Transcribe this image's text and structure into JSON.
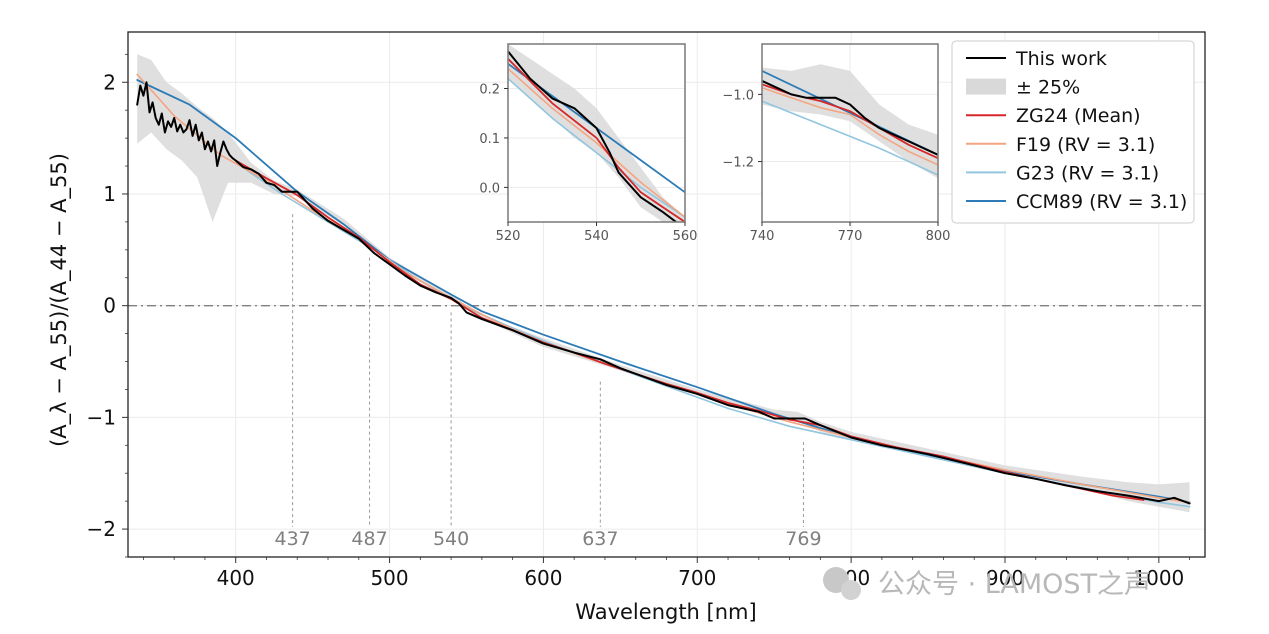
{
  "chart_data": [
    {
      "type": "line",
      "panel": "main",
      "xlabel": "Wavelength [nm]",
      "ylabel": "(A_λ − A_55)/(A_44 − A_55)",
      "xlim": [
        330,
        1030
      ],
      "ylim": [
        -2.25,
        2.45
      ],
      "xticks": [
        400,
        500,
        600,
        700,
        800,
        900,
        1000
      ],
      "yticks": [
        2,
        1,
        0,
        -1,
        -2
      ],
      "ytick_labels": [
        "2",
        "1",
        "0",
        "−1",
        "−2"
      ],
      "grid": true,
      "legend_position": "top-right",
      "reference_line": {
        "y": 0,
        "style": "dash-dot",
        "color": "#808080"
      },
      "annotations": [
        {
          "x": 437,
          "label": "437",
          "y_top": 0.82
        },
        {
          "x": 487,
          "label": "487",
          "y_top": 0.43
        },
        {
          "x": 540,
          "label": "540",
          "y_top": -0.06
        },
        {
          "x": 637,
          "label": "637",
          "y_top": -0.68
        },
        {
          "x": 769,
          "label": "769",
          "y_top": -1.22
        }
      ],
      "band": {
        "name": "± 25%",
        "color": "#d9d9d9",
        "x": [
          336,
          345,
          355,
          365,
          375,
          385,
          395,
          410,
          425,
          440,
          470,
          500,
          540,
          560,
          600,
          650,
          700,
          750,
          765,
          780,
          800,
          850,
          900,
          950,
          980,
          1000,
          1020
        ],
        "upper": [
          2.25,
          2.2,
          2.0,
          1.9,
          1.78,
          1.68,
          1.55,
          1.28,
          1.12,
          1.04,
          0.78,
          0.43,
          0.1,
          -0.09,
          -0.29,
          -0.53,
          -0.75,
          -0.93,
          -0.95,
          -1.04,
          -1.13,
          -1.28,
          -1.43,
          -1.53,
          -1.58,
          -1.6,
          -1.58
        ],
        "lower": [
          1.45,
          1.55,
          1.4,
          1.3,
          1.15,
          0.75,
          1.1,
          1.1,
          1.0,
          0.98,
          0.72,
          0.38,
          0.06,
          -0.12,
          -0.37,
          -0.58,
          -0.8,
          -0.98,
          -1.02,
          -1.13,
          -1.2,
          -1.32,
          -1.5,
          -1.63,
          -1.75,
          -1.8,
          -1.85
        ]
      },
      "series": [
        {
          "name": "This work",
          "color": "#000000",
          "width": 2.0,
          "x": [
            336,
            338,
            340,
            342,
            344,
            346,
            348,
            350,
            352,
            354,
            356,
            358,
            360,
            362,
            364,
            366,
            368,
            370,
            372,
            374,
            376,
            378,
            380,
            382,
            384,
            386,
            388,
            390,
            392,
            394,
            396,
            398,
            400,
            405,
            410,
            415,
            420,
            425,
            430,
            435,
            440,
            450,
            460,
            470,
            480,
            490,
            500,
            510,
            520,
            530,
            540,
            545,
            550,
            560,
            580,
            600,
            620,
            637,
            650,
            680,
            700,
            720,
            740,
            750,
            760,
            770,
            780,
            800,
            820,
            850,
            880,
            900,
            920,
            940,
            960,
            980,
            1000,
            1010,
            1020
          ],
          "y": [
            1.8,
            1.97,
            1.88,
            2.0,
            1.73,
            1.82,
            1.68,
            1.62,
            1.72,
            1.55,
            1.65,
            1.6,
            1.68,
            1.56,
            1.62,
            1.55,
            1.58,
            1.66,
            1.52,
            1.62,
            1.48,
            1.55,
            1.4,
            1.47,
            1.38,
            1.48,
            1.25,
            1.37,
            1.47,
            1.4,
            1.35,
            1.32,
            1.3,
            1.24,
            1.22,
            1.18,
            1.1,
            1.08,
            1.02,
            1.02,
            1.02,
            0.87,
            0.76,
            0.68,
            0.6,
            0.47,
            0.37,
            0.27,
            0.18,
            0.12,
            0.07,
            0.02,
            -0.06,
            -0.12,
            -0.22,
            -0.34,
            -0.42,
            -0.48,
            -0.56,
            -0.71,
            -0.79,
            -0.89,
            -0.95,
            -1.01,
            -1.01,
            -1.01,
            -1.07,
            -1.18,
            -1.25,
            -1.33,
            -1.43,
            -1.5,
            -1.55,
            -1.61,
            -1.66,
            -1.7,
            -1.75,
            -1.72,
            -1.77
          ]
        },
        {
          "name": "ZG24 (Mean)",
          "color": "#d62728",
          "width": 1.8,
          "x": [
            400,
            420,
            440,
            460,
            480,
            500,
            520,
            540,
            560,
            580,
            600,
            620,
            640,
            660,
            680,
            700,
            720,
            740,
            760,
            780,
            800,
            830,
            860,
            900,
            940,
            970,
            990
          ],
          "y": [
            1.3,
            1.14,
            0.99,
            0.79,
            0.61,
            0.39,
            0.19,
            0.06,
            -0.11,
            -0.22,
            -0.33,
            -0.42,
            -0.52,
            -0.61,
            -0.7,
            -0.78,
            -0.87,
            -0.94,
            -1.02,
            -1.07,
            -1.17,
            -1.27,
            -1.35,
            -1.49,
            -1.61,
            -1.7,
            -1.74
          ]
        },
        {
          "name": "F19 (R_V = 3.1)",
          "color": "#f4a582",
          "width": 1.6,
          "x": [
            336,
            360,
            390,
            420,
            450,
            480,
            510,
            540,
            570,
            600,
            640,
            680,
            720,
            760,
            800,
            850,
            900,
            950,
            1000,
            1020
          ],
          "y": [
            2.07,
            1.7,
            1.35,
            1.12,
            0.85,
            0.6,
            0.3,
            0.07,
            -0.15,
            -0.33,
            -0.52,
            -0.7,
            -0.88,
            -1.04,
            -1.18,
            -1.33,
            -1.47,
            -1.6,
            -1.72,
            -1.76
          ]
        },
        {
          "name": "G23 (R_V = 3.1)",
          "color": "#92c5de",
          "width": 1.6,
          "x": [
            400,
            430,
            460,
            490,
            520,
            550,
            580,
            610,
            640,
            680,
            720,
            760,
            800,
            850,
            900,
            950,
            1000,
            1020
          ],
          "y": [
            1.28,
            1.0,
            0.75,
            0.5,
            0.22,
            -0.02,
            -0.2,
            -0.37,
            -0.52,
            -0.72,
            -0.92,
            -1.08,
            -1.2,
            -1.35,
            -1.5,
            -1.63,
            -1.76,
            -1.8
          ]
        },
        {
          "name": "CCM89 (R_V = 3.1)",
          "color": "#2c7bb6",
          "width": 1.8,
          "x": [
            336,
            370,
            400,
            440,
            470,
            500,
            540,
            560,
            600,
            650,
            700,
            750,
            800,
            850,
            900,
            950,
            1000,
            1020
          ],
          "y": [
            2.02,
            1.8,
            1.5,
            1.02,
            0.73,
            0.41,
            0.1,
            -0.05,
            -0.26,
            -0.5,
            -0.73,
            -0.97,
            -1.18,
            -1.34,
            -1.48,
            -1.6,
            -1.71,
            -1.76
          ]
        }
      ]
    },
    {
      "type": "line",
      "panel": "inset-left",
      "xlim": [
        520,
        560
      ],
      "ylim": [
        -0.07,
        0.29
      ],
      "xticks": [
        520,
        540,
        560
      ],
      "yticks": [
        0.2,
        0.1,
        0.0
      ],
      "ytick_labels": [
        "0.2",
        "0.1",
        "0.0"
      ],
      "grid": true,
      "band": {
        "x": [
          520,
          525,
          530,
          535,
          540,
          545,
          550,
          555,
          560
        ],
        "upper": [
          0.29,
          0.26,
          0.23,
          0.2,
          0.16,
          0.1,
          0.04,
          -0.02,
          -0.06
        ],
        "lower": [
          0.22,
          0.18,
          0.14,
          0.1,
          0.07,
          0.02,
          -0.04,
          -0.07,
          -0.07
        ]
      },
      "series": [
        {
          "name": "This work",
          "color": "#000000",
          "width": 2.0,
          "x": [
            520,
            525,
            530,
            535,
            540,
            543,
            545,
            550,
            555,
            558
          ],
          "y": [
            0.275,
            0.22,
            0.18,
            0.16,
            0.12,
            0.07,
            0.03,
            -0.02,
            -0.05,
            -0.07
          ]
        },
        {
          "name": "ZG24 (Mean)",
          "color": "#d62728",
          "width": 1.8,
          "x": [
            520,
            530,
            540,
            545,
            550,
            555,
            560
          ],
          "y": [
            0.26,
            0.17,
            0.1,
            0.04,
            -0.01,
            -0.04,
            -0.07
          ]
        },
        {
          "name": "F19 (R_V = 3.1)",
          "color": "#f4a582",
          "width": 1.6,
          "x": [
            520,
            530,
            540,
            550,
            560
          ],
          "y": [
            0.24,
            0.16,
            0.09,
            0.01,
            -0.06
          ]
        },
        {
          "name": "G23 (R_V = 3.1)",
          "color": "#92c5de",
          "width": 1.6,
          "x": [
            520,
            530,
            540,
            550,
            560
          ],
          "y": [
            0.22,
            0.14,
            0.07,
            0.0,
            -0.06
          ]
        },
        {
          "name": "CCM89 (R_V = 3.1)",
          "color": "#2c7bb6",
          "width": 1.8,
          "x": [
            520,
            560
          ],
          "y": [
            0.25,
            -0.01
          ]
        }
      ]
    },
    {
      "type": "line",
      "panel": "inset-right",
      "xlim": [
        740,
        800
      ],
      "ylim": [
        -1.38,
        -0.85
      ],
      "xticks": [
        740,
        770,
        800
      ],
      "yticks": [
        -1.0,
        -1.2
      ],
      "ytick_labels": [
        "−1.0",
        "−1.2"
      ],
      "grid": true,
      "band": {
        "x": [
          740,
          750,
          760,
          770,
          780,
          790,
          800
        ],
        "upper": [
          -0.92,
          -0.93,
          -0.91,
          -0.93,
          -1.03,
          -1.09,
          -1.12
        ],
        "lower": [
          -1.03,
          -1.05,
          -1.06,
          -1.08,
          -1.14,
          -1.2,
          -1.25
        ]
      },
      "series": [
        {
          "name": "This work",
          "color": "#000000",
          "width": 2.0,
          "x": [
            740,
            745,
            750,
            755,
            760,
            765,
            770,
            775,
            780,
            790,
            800
          ],
          "y": [
            -0.96,
            -0.98,
            -1.0,
            -1.01,
            -1.01,
            -1.01,
            -1.03,
            -1.07,
            -1.1,
            -1.14,
            -1.18
          ]
        },
        {
          "name": "ZG24 (Mean)",
          "color": "#d62728",
          "width": 1.8,
          "x": [
            740,
            750,
            760,
            770,
            780,
            790,
            800
          ],
          "y": [
            -0.97,
            -1.0,
            -1.02,
            -1.05,
            -1.1,
            -1.15,
            -1.19
          ]
        },
        {
          "name": "F19 (R_V = 3.1)",
          "color": "#f4a582",
          "width": 1.6,
          "x": [
            740,
            750,
            760,
            770,
            780,
            790,
            800
          ],
          "y": [
            -0.98,
            -1.01,
            -1.04,
            -1.06,
            -1.12,
            -1.17,
            -1.21
          ]
        },
        {
          "name": "G23 (R_V = 3.1)",
          "color": "#92c5de",
          "width": 1.6,
          "x": [
            740,
            760,
            780,
            800
          ],
          "y": [
            -1.02,
            -1.09,
            -1.16,
            -1.24
          ]
        },
        {
          "name": "CCM89 (R_V = 3.1)",
          "color": "#2c7bb6",
          "width": 1.8,
          "x": [
            740,
            800
          ],
          "y": [
            -0.93,
            -1.18
          ]
        }
      ]
    }
  ],
  "legend": {
    "entries": [
      {
        "label": "This work",
        "color": "#000000",
        "kind": "line"
      },
      {
        "label": "± 25%",
        "color": "#d9d9d9",
        "kind": "patch"
      },
      {
        "label": "ZG24 (Mean)",
        "color": "#d62728",
        "kind": "line"
      },
      {
        "label": "F19 (RV = 3.1)",
        "color": "#f4a582",
        "kind": "line"
      },
      {
        "label": "G23 (RV = 3.1)",
        "color": "#92c5de",
        "kind": "line"
      },
      {
        "label": "CCM89 (RV = 3.1)",
        "color": "#2c7bb6",
        "kind": "line"
      }
    ]
  },
  "watermark": {
    "text": "公众号 · LAMOST之声"
  }
}
